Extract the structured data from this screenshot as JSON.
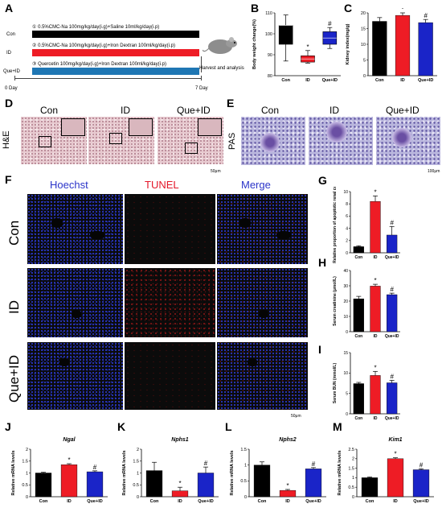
{
  "panel_letters": [
    "A",
    "B",
    "C",
    "D",
    "E",
    "F",
    "G",
    "H",
    "I",
    "J",
    "K",
    "L",
    "M"
  ],
  "panel_a": {
    "groups": [
      "Con",
      "ID",
      "Que+ID"
    ],
    "protocols": [
      {
        "num": "①",
        "text": "0.5%CMC-Na 100mg/kg/day(i.g)+Saline 10ml/kg/day(i.p)"
      },
      {
        "num": "②",
        "text": "0.5%CMC-Na 100mg/kg/day(i.g)+Iron Dextran 100ml/kg/day(i.p)"
      },
      {
        "num": "③",
        "text": "Quercetin 100mg/kg/day(i.g)+Iron Dextran 100ml/kg/day(i.p)"
      }
    ],
    "bar_colors": [
      "#000000",
      "#ee1c25",
      "#1f77b4"
    ],
    "day_start": "0 Day",
    "day_end": "7 Day",
    "harvest": "Harvest and analysis"
  },
  "panel_d": {
    "stain": "H&E",
    "groups": [
      "Con",
      "ID",
      "Que+ID"
    ],
    "scale": "50μm"
  },
  "panel_e": {
    "stain": "PAS",
    "groups": [
      "Con",
      "ID",
      "Que+ID"
    ],
    "scale": "100μm"
  },
  "panel_f": {
    "columns": [
      "Hoechst",
      "TUNEL",
      "Merge"
    ],
    "column_colors": [
      "#2b34c9",
      "#e4182a",
      "#2b34c9"
    ],
    "rows": [
      "Con",
      "ID",
      "Que+ID"
    ],
    "scale": "50μm"
  },
  "colors": {
    "con": "#000000",
    "id": "#ee1c25",
    "que": "#1a24c8",
    "star": "*",
    "hash": "#"
  },
  "chart_data": [
    {
      "panel": "B",
      "type": "box",
      "ylabel": "Body weight change(%)",
      "categories": [
        "Con",
        "ID",
        "Que+ID"
      ],
      "ylim": [
        80,
        110
      ],
      "yticks": [
        80,
        90,
        100,
        110
      ],
      "boxes": [
        {
          "min": 87,
          "q1": 95,
          "median": 104,
          "q3": 104,
          "max": 109
        },
        {
          "min": 86,
          "q1": 86.5,
          "median": 88,
          "q3": 89.5,
          "max": 92
        },
        {
          "min": 93,
          "q1": 95,
          "median": 98,
          "q3": 101,
          "max": 103
        }
      ],
      "annotations": [
        "",
        "*",
        "#"
      ]
    },
    {
      "panel": "C",
      "type": "bar",
      "ylabel": "Kidney index(mg/g)",
      "categories": [
        "Con",
        "ID",
        "Que+ID"
      ],
      "ylim": [
        0,
        20
      ],
      "yticks": [
        0,
        5,
        10,
        15,
        20
      ],
      "values": [
        17.3,
        19.2,
        16.9
      ],
      "errors": [
        1.2,
        0.8,
        1.0
      ],
      "annotations": [
        "",
        "*",
        "#"
      ]
    },
    {
      "panel": "G",
      "type": "bar",
      "ylabel": "Relative proportion of apoptotic renal cells",
      "categories": [
        "Con",
        "ID",
        "Que+ID"
      ],
      "ylim": [
        0,
        10
      ],
      "yticks": [
        0,
        2,
        4,
        6,
        8,
        10
      ],
      "values": [
        1.0,
        8.4,
        2.9
      ],
      "errors": [
        0.15,
        0.9,
        1.4
      ],
      "annotations": [
        "",
        "*",
        "#"
      ]
    },
    {
      "panel": "H",
      "type": "bar",
      "ylabel": "Serum creatinine (μmol/L)",
      "categories": [
        "Con",
        "ID",
        "Que+ID"
      ],
      "ylim": [
        0,
        40
      ],
      "yticks": [
        0,
        10,
        20,
        30,
        40
      ],
      "values": [
        21.5,
        29.8,
        24.2
      ],
      "errors": [
        1.6,
        1.2,
        1.0
      ],
      "annotations": [
        "",
        "*",
        "#"
      ]
    },
    {
      "panel": "I",
      "type": "bar",
      "ylabel": "Serum BUN (mmol/L)",
      "categories": [
        "Con",
        "ID",
        "Que+ID"
      ],
      "ylim": [
        0,
        15
      ],
      "yticks": [
        0,
        5,
        10,
        15
      ],
      "values": [
        7.4,
        9.4,
        7.6
      ],
      "errors": [
        0.3,
        1.0,
        0.6
      ],
      "annotations": [
        "",
        "*",
        "#"
      ]
    },
    {
      "panel": "J",
      "type": "bar",
      "title": "Ngal",
      "ylabel": "Relative mRNA levels",
      "categories": [
        "Con",
        "ID",
        "Que+ID"
      ],
      "ylim": [
        0,
        2.0
      ],
      "yticks": [
        0.0,
        0.5,
        1.0,
        1.5,
        2.0
      ],
      "values": [
        1.0,
        1.35,
        1.05
      ],
      "errors": [
        0.03,
        0.04,
        0.04
      ],
      "annotations": [
        "",
        "*",
        "#"
      ]
    },
    {
      "panel": "K",
      "type": "bar",
      "title": "Nphs1",
      "ylabel": "Relative mRNA levels",
      "categories": [
        "Con",
        "ID",
        "Que+ID"
      ],
      "ylim": [
        0,
        2.0
      ],
      "yticks": [
        0.0,
        0.5,
        1.0,
        1.5,
        2.0
      ],
      "values": [
        1.1,
        0.25,
        1.0
      ],
      "errors": [
        0.35,
        0.15,
        0.25
      ],
      "annotations": [
        "",
        "*",
        "#"
      ]
    },
    {
      "panel": "L",
      "type": "bar",
      "title": "Nphs2",
      "ylabel": "Relative mRNA levels",
      "categories": [
        "Con",
        "ID",
        "Que+ID"
      ],
      "ylim": [
        0,
        1.5
      ],
      "yticks": [
        0.0,
        0.5,
        1.0,
        1.5
      ],
      "values": [
        1.0,
        0.2,
        0.88
      ],
      "errors": [
        0.1,
        0.03,
        0.04
      ],
      "annotations": [
        "",
        "*",
        "#"
      ]
    },
    {
      "panel": "M",
      "type": "bar",
      "title": "Kim1",
      "ylabel": "Relative mRNA levels",
      "categories": [
        "Con",
        "ID",
        "Que+ID"
      ],
      "ylim": [
        0,
        2.5
      ],
      "yticks": [
        0.0,
        0.5,
        1.0,
        1.5,
        2.0,
        2.5
      ],
      "values": [
        1.0,
        2.0,
        1.42
      ],
      "errors": [
        0.04,
        0.05,
        0.05
      ],
      "annotations": [
        "",
        "*",
        "#"
      ]
    }
  ]
}
